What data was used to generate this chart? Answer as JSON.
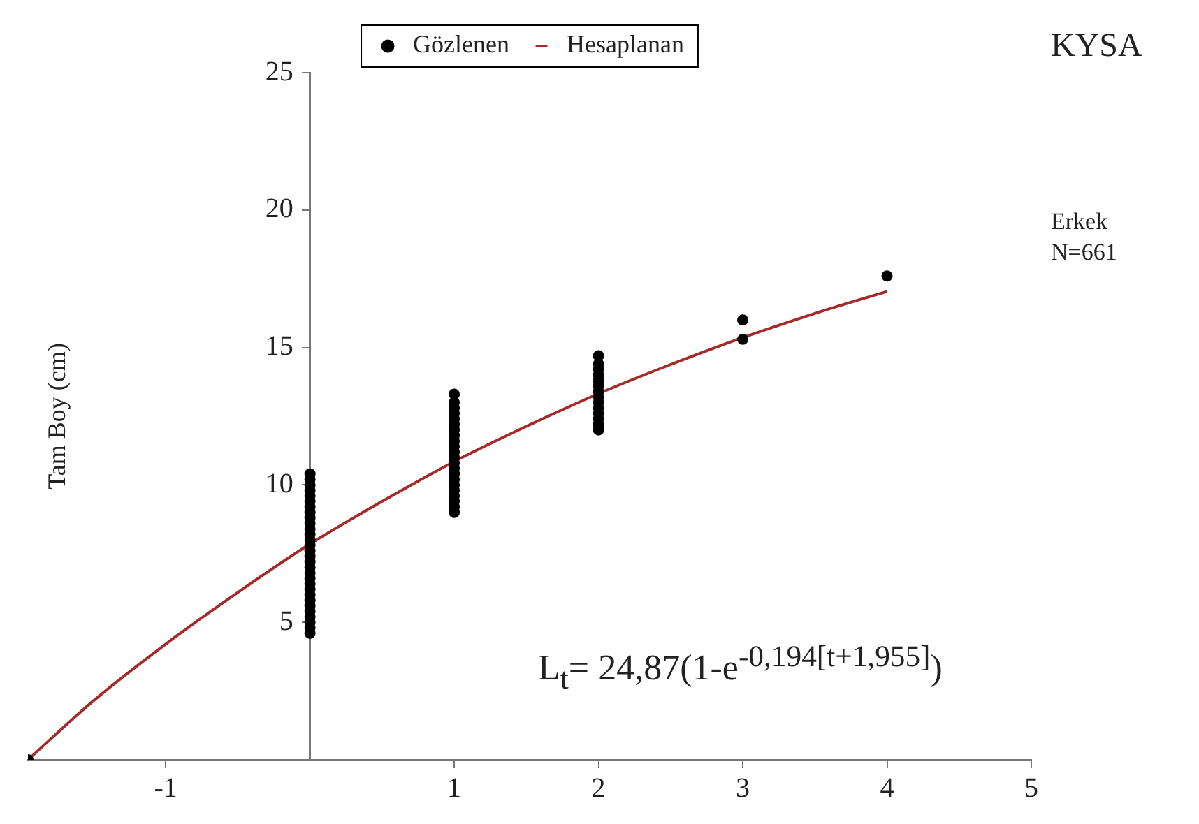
{
  "chart_data": {
    "type": "scatter",
    "ylabel": "Tam Boy (cm)",
    "xlim": [
      -1.955,
      5
    ],
    "xticks": [
      -1,
      1,
      2,
      3,
      4,
      5
    ],
    "ylim": [
      0,
      25
    ],
    "yticks": [
      {
        "value": 0,
        "label": null
      },
      5,
      10,
      15,
      20,
      25
    ],
    "legend": "top",
    "grid": false,
    "marker": "circle",
    "annotations": [
      "KYSA",
      "Erkek\nN=661",
      "L$_{t}$= 24,87(1-e$^{-0,194[t+1,955]}$)"
    ],
    "series": [
      {
        "name": "Gözlenen",
        "type": "scatter",
        "color": "#000000",
        "x": [
          -1.955,
          0,
          0,
          0,
          0,
          0,
          0,
          0,
          0,
          0,
          0,
          0,
          0,
          0,
          0,
          0,
          0,
          0,
          0,
          0,
          0,
          0,
          0,
          0,
          0,
          0,
          0,
          0,
          0,
          0,
          0,
          1,
          1,
          1,
          1,
          1,
          1,
          1,
          1,
          1,
          1,
          1,
          1,
          1,
          1,
          1,
          1,
          1,
          1,
          1,
          1,
          1,
          1,
          2,
          2,
          2,
          2,
          2,
          2,
          2,
          2,
          2,
          2,
          2,
          2,
          2,
          2,
          3,
          3,
          4
        ],
        "values": [
          0,
          4.6,
          4.8,
          5.0,
          5.2,
          5.4,
          5.6,
          5.8,
          6.0,
          6.2,
          6.4,
          6.6,
          6.8,
          7.0,
          7.2,
          7.4,
          7.6,
          7.8,
          8.0,
          8.2,
          8.4,
          8.6,
          8.8,
          9.0,
          9.2,
          9.4,
          9.6,
          9.8,
          10.0,
          10.2,
          10.4,
          9.0,
          9.2,
          9.4,
          9.6,
          9.8,
          10.0,
          10.2,
          10.4,
          10.6,
          10.8,
          11.0,
          11.2,
          11.4,
          11.6,
          11.8,
          12.0,
          12.2,
          12.4,
          12.6,
          12.8,
          13.0,
          13.3,
          12.0,
          12.2,
          12.4,
          12.6,
          12.8,
          13.0,
          13.2,
          13.4,
          13.6,
          13.8,
          14.0,
          14.2,
          14.4,
          14.7,
          15.3,
          16.0,
          17.6
        ]
      },
      {
        "name": "Hesaplanan",
        "type": "line",
        "color": "#a52a2a",
        "marker": "none",
        "line_style": "solid",
        "x": [
          -1.955,
          -1.5,
          -1,
          -0.5,
          0,
          0.5,
          1,
          1.5,
          2,
          2.5,
          3,
          3.5,
          4
        ],
        "values": [
          0,
          2.15,
          4.21,
          6.09,
          7.85,
          9.4,
          10.85,
          12.13,
          13.32,
          14.38,
          15.36,
          16.24,
          17.04
        ]
      }
    ]
  }
}
